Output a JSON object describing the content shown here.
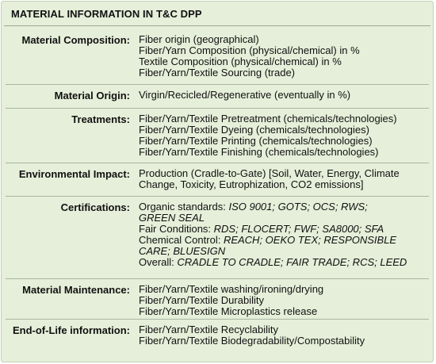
{
  "title": "MATERIAL INFORMATION IN T&C DPP",
  "sections": [
    {
      "label": "Material Composition:",
      "lines": [
        [
          {
            "t": "Fiber origin (geographical)"
          }
        ],
        [
          {
            "t": "Fiber/Yarn Composition (physical/chemical) in %"
          }
        ],
        [
          {
            "t": "Textile Composition (physical/chemical) in %"
          }
        ],
        [
          {
            "t": "Fiber/Yarn/Textile Sourcing (trade)"
          }
        ]
      ]
    },
    {
      "label": "Material Origin:",
      "lines": [
        [
          {
            "t": "Virgin/Recicled/Regenerative (eventually in %)"
          }
        ]
      ]
    },
    {
      "label": "Treatments:",
      "lines": [
        [
          {
            "t": "Fiber/Yarn/Textile Pretreatment (chemicals/technologies)"
          }
        ],
        [
          {
            "t": "Fiber/Yarn/Textile Dyeing (chemicals/technologies)"
          }
        ],
        [
          {
            "t": "Fiber/Yarn/Textile Printing (chemicals/technologies)"
          }
        ],
        [
          {
            "t": "Fiber/Yarn/Textile Finishing (chemicals/technologies)"
          }
        ]
      ]
    },
    {
      "label": "Environmental Impact:",
      "lines": [
        [
          {
            "t": "Production (Cradle-to-Gate) [Soil, Water, Energy, Climate"
          }
        ],
        [
          {
            "t": "Change, Toxicity, Eutrophization, CO2 emissions]"
          }
        ]
      ]
    },
    {
      "label": "Certifications:",
      "lines": [
        [
          {
            "t": "Organic standards: "
          },
          {
            "t": "ISO 9001; GOTS; OCS; RWS;",
            "i": true
          }
        ],
        [
          {
            "t": "GREEN SEAL",
            "i": true
          }
        ],
        [
          {
            "t": "Fair Conditions: "
          },
          {
            "t": "RDS; FLOCERT; FWF; SA8000; SFA",
            "i": true
          }
        ],
        [
          {
            "t": "Chemical Control: "
          },
          {
            "t": "REACH; OEKO TEX; RESPONSIBLE",
            "i": true
          }
        ],
        [
          {
            "t": "CARE; BLUESIGN",
            "i": true
          }
        ],
        [
          {
            "t": "Overall: "
          },
          {
            "t": "CRADLE TO CRADLE; FAIR TRADE; RCS; LEED",
            "i": true
          }
        ]
      ]
    },
    {
      "label": "Material Maintenance:",
      "lines": [
        [
          {
            "t": "Fiber/Yarn/Textile washing/ironing/drying"
          }
        ],
        [
          {
            "t": "Fiber/Yarn/Textile Durability"
          }
        ],
        [
          {
            "t": "Fiber/Yarn/Textile Microplastics release"
          }
        ]
      ]
    },
    {
      "label": "End-of-Life information:",
      "lines": [
        [
          {
            "t": "Fiber/Yarn/Textile Recyclability"
          }
        ],
        [
          {
            "t": "Fiber/Yarn/Textile Biodegradability/Compostability"
          }
        ]
      ]
    }
  ]
}
